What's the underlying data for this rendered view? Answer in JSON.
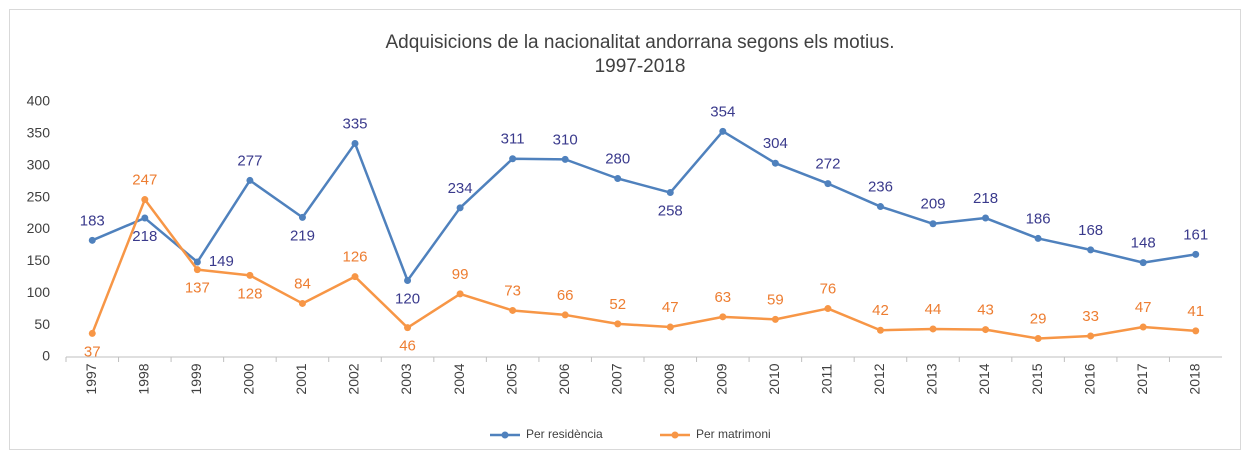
{
  "chart_data": {
    "type": "line",
    "title": "Adquisicions de la nacionalitat andorrana segons els motius.",
    "subtitle": "1997-2018",
    "categories": [
      "1997",
      "1998",
      "1999",
      "2000",
      "2001",
      "2002",
      "2003",
      "2004",
      "2005",
      "2006",
      "2007",
      "2008",
      "2009",
      "2010",
      "2011",
      "2012",
      "2013",
      "2014",
      "2015",
      "2016",
      "2017",
      "2018"
    ],
    "series": [
      {
        "name": "Per residència",
        "color": "#4f81bd",
        "label_color": "#3a3a8c",
        "values": [
          183,
          218,
          149,
          277,
          219,
          335,
          120,
          234,
          311,
          310,
          280,
          258,
          354,
          304,
          272,
          236,
          209,
          218,
          186,
          168,
          148,
          161
        ]
      },
      {
        "name": "Per matrimoni",
        "color": "#f79646",
        "label_color": "#ed7d31",
        "values": [
          37,
          247,
          137,
          128,
          84,
          126,
          46,
          99,
          73,
          66,
          52,
          47,
          63,
          59,
          76,
          42,
          44,
          43,
          29,
          33,
          47,
          41
        ]
      }
    ],
    "ylim": [
      0,
      400
    ],
    "yticks": [
      0,
      50,
      100,
      150,
      200,
      250,
      300,
      350,
      400
    ],
    "grid": false,
    "legend": "bottom"
  }
}
